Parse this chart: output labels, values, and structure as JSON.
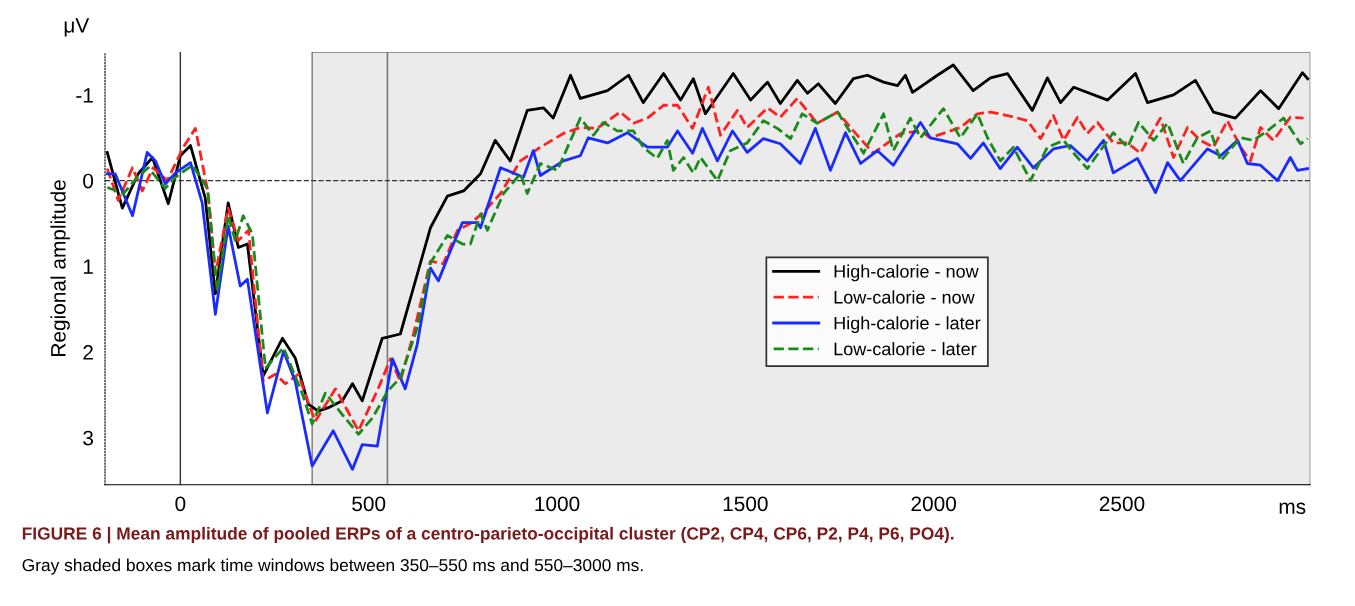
{
  "chart_data": {
    "type": "line",
    "title": "FIGURE 6 | Mean amplitude of pooled ERPs of a centro-parieto-occipital cluster (CP2, CP4, CP6, P2, P4, P6, PO4).",
    "ylabel": "Regional amplitude",
    "annotations": [
      "μV",
      "ms",
      "Gray shaded boxes mark time windows between 350–550 ms and 550–3000 ms."
    ],
    "xlim": [
      -200,
      3000
    ],
    "ylim": [
      3.55,
      -1.5
    ],
    "xticks": [
      0,
      500,
      1000,
      1500,
      2000,
      2500
    ],
    "yticks": [
      {
        "value": -1,
        "label": "-1"
      },
      0,
      1,
      2,
      3
    ],
    "grid": false,
    "legend": "center right",
    "marker": "none",
    "bands": [
      {
        "axis": "x",
        "from": 350,
        "to": 550,
        "color": "#ebebeb"
      },
      {
        "axis": "x",
        "from": 550,
        "to": 3000,
        "color": "#ebebeb"
      }
    ],
    "ref_lines": [
      {
        "axis": "y",
        "value": 0,
        "color": "#333333",
        "line_style": "dashed"
      },
      {
        "axis": "x",
        "value": 0,
        "color": "#333333",
        "line_style": "solid"
      }
    ],
    "series": [
      {
        "name": "High-calorie - now",
        "color": "#000000",
        "line_style": "solid",
        "x": [
          -194,
          -154,
          -112,
          -74,
          -32,
          0,
          27,
          66,
          93,
          127,
          154,
          178,
          220,
          271,
          305,
          340,
          366,
          393,
          430,
          457,
          483,
          536,
          584,
          619,
          664,
          709,
          752,
          797,
          836,
          876,
          921,
          964,
          990,
          1036,
          1062,
          1134,
          1190,
          1229,
          1283,
          1328,
          1362,
          1394,
          1468,
          1514,
          1559,
          1593,
          1638,
          1665,
          1694,
          1739,
          1787,
          1824,
          1867,
          1904,
          1925,
          1944,
          2010,
          2052,
          2105,
          2151,
          2196,
          2262,
          2302,
          2337,
          2372,
          2462,
          2536,
          2568,
          2637,
          2695,
          2743,
          2801,
          2868,
          2916,
          2979,
          2993
        ],
        "values": [
          -0.33,
          0.32,
          -0.08,
          -0.27,
          0.27,
          -0.29,
          -0.41,
          0.2,
          1.32,
          0.26,
          0.78,
          0.74,
          2.28,
          1.84,
          2.07,
          2.61,
          2.69,
          2.65,
          2.57,
          2.37,
          2.57,
          1.84,
          1.79,
          1.25,
          0.55,
          0.18,
          0.12,
          -0.08,
          -0.47,
          -0.23,
          -0.82,
          -0.85,
          -0.73,
          -1.23,
          -0.96,
          -1.05,
          -1.23,
          -0.91,
          -1.25,
          -0.94,
          -1.19,
          -0.78,
          -1.25,
          -0.94,
          -1.15,
          -0.9,
          -1.17,
          -1.02,
          -1.13,
          -0.9,
          -1.19,
          -1.23,
          -1.15,
          -1.11,
          -1.23,
          -1.03,
          -1.23,
          -1.35,
          -1.05,
          -1.2,
          -1.25,
          -0.82,
          -1.2,
          -0.91,
          -1.09,
          -0.94,
          -1.25,
          -0.91,
          -1.0,
          -1.17,
          -0.8,
          -0.73,
          -1.05,
          -0.84,
          -1.26,
          -1.19
        ]
      },
      {
        "name": "Low-calorie - now",
        "color": "#ff2020",
        "line_style": "dashed",
        "x": [
          -194,
          -165,
          -127,
          -101,
          -72,
          -35,
          8,
          40,
          74,
          93,
          127,
          154,
          181,
          220,
          252,
          279,
          313,
          358,
          412,
          473,
          526,
          558,
          584,
          619,
          664,
          698,
          736,
          770,
          805,
          850,
          903,
          956,
          1017,
          1062,
          1107,
          1168,
          1203,
          1240,
          1283,
          1320,
          1360,
          1402,
          1434,
          1479,
          1505,
          1559,
          1593,
          1638,
          1691,
          1745,
          1787,
          1840,
          1912,
          1965,
          1991,
          2071,
          2116,
          2151,
          2196,
          2249,
          2284,
          2318,
          2345,
          2382,
          2408,
          2435,
          2477,
          2515,
          2549,
          2602,
          2637,
          2674,
          2708,
          2743,
          2780,
          2815,
          2841,
          2868,
          2902,
          2947,
          2982
        ],
        "values": [
          -0.14,
          0.23,
          -0.15,
          0.12,
          -0.15,
          0,
          -0.39,
          -0.61,
          0.15,
          1.09,
          0.32,
          0.7,
          0.58,
          2.34,
          2.26,
          2.37,
          2.26,
          2.81,
          2.43,
          2.92,
          2.42,
          2.08,
          2.34,
          1.79,
          0.94,
          0.97,
          0.58,
          0.5,
          0.37,
          0.15,
          -0.23,
          -0.39,
          -0.55,
          -0.62,
          -0.61,
          -0.8,
          -0.67,
          -0.73,
          -0.88,
          -0.88,
          -0.61,
          -1.09,
          -0.53,
          -0.82,
          -0.62,
          -0.85,
          -0.74,
          -0.96,
          -0.67,
          -0.8,
          -0.58,
          -0.32,
          -0.55,
          -0.58,
          -0.5,
          -0.62,
          -0.78,
          -0.8,
          -0.76,
          -0.7,
          -0.49,
          -0.76,
          -0.47,
          -0.74,
          -0.55,
          -0.68,
          -0.44,
          -0.44,
          -0.32,
          -0.73,
          -0.27,
          -0.62,
          -0.47,
          -0.39,
          -0.7,
          -0.39,
          -0.23,
          -0.62,
          -0.47,
          -0.74,
          -0.73
        ]
      },
      {
        "name": "High-calorie - later",
        "color": "#1a2bff",
        "line_style": "solid",
        "x": [
          -194,
          -173,
          -127,
          -88,
          -66,
          -40,
          -13,
          27,
          58,
          93,
          127,
          159,
          178,
          231,
          274,
          305,
          350,
          406,
          457,
          483,
          523,
          563,
          597,
          629,
          664,
          685,
          717,
          749,
          789,
          797,
          850,
          884,
          911,
          937,
          956,
          1017,
          1062,
          1083,
          1134,
          1187,
          1240,
          1293,
          1320,
          1360,
          1386,
          1426,
          1466,
          1505,
          1548,
          1593,
          1646,
          1686,
          1726,
          1766,
          1806,
          1851,
          1893,
          1965,
          1991,
          2063,
          2098,
          2132,
          2177,
          2222,
          2265,
          2318,
          2363,
          2408,
          2451,
          2477,
          2541,
          2589,
          2621,
          2655,
          2727,
          2762,
          2807,
          2833,
          2868,
          2913,
          2947,
          2966,
          2993
        ],
        "values": [
          -0.08,
          -0.08,
          0.41,
          -0.33,
          -0.23,
          0.04,
          -0.09,
          -0.21,
          0.26,
          1.56,
          0.53,
          1.23,
          1.15,
          2.71,
          1.99,
          2.34,
          3.33,
          2.92,
          3.37,
          3.08,
          3.1,
          2.08,
          2.43,
          1.91,
          1.02,
          1.17,
          0.82,
          0.49,
          0.49,
          0.55,
          -0.15,
          -0.09,
          -0.04,
          -0.35,
          -0.06,
          -0.23,
          -0.29,
          -0.5,
          -0.44,
          -0.56,
          -0.39,
          -0.39,
          -0.58,
          -0.32,
          -0.61,
          -0.23,
          -0.58,
          -0.33,
          -0.49,
          -0.43,
          -0.2,
          -0.61,
          -0.12,
          -0.56,
          -0.2,
          -0.35,
          -0.18,
          -0.68,
          -0.5,
          -0.43,
          -0.26,
          -0.44,
          -0.14,
          -0.39,
          -0.15,
          -0.37,
          -0.41,
          -0.23,
          -0.47,
          -0.09,
          -0.26,
          0.14,
          -0.21,
          0.0,
          -0.37,
          -0.29,
          -0.47,
          -0.2,
          -0.18,
          0.0,
          -0.27,
          -0.12,
          -0.14
        ]
      },
      {
        "name": "Low-calorie - later",
        "color": "#1a8a1a",
        "line_style": "dashed",
        "x": [
          -194,
          -151,
          -114,
          -85,
          -40,
          -13,
          32,
          72,
          98,
          127,
          146,
          167,
          191,
          226,
          274,
          324,
          350,
          385,
          430,
          473,
          510,
          550,
          584,
          629,
          664,
          709,
          749,
          770,
          797,
          815,
          858,
          903,
          921,
          956,
          1001,
          1062,
          1097,
          1123,
          1160,
          1203,
          1229,
          1266,
          1293,
          1309,
          1336,
          1362,
          1381,
          1426,
          1460,
          1505,
          1548,
          1585,
          1620,
          1651,
          1691,
          1745,
          1814,
          1867,
          1893,
          1938,
          1965,
          2026,
          2071,
          2116,
          2143,
          2177,
          2212,
          2257,
          2302,
          2345,
          2372,
          2408,
          2477,
          2515,
          2544,
          2584,
          2621,
          2663,
          2700,
          2735,
          2762,
          2815,
          2849,
          2886,
          2929,
          2974,
          2993
        ],
        "values": [
          0.08,
          0.15,
          -0.04,
          -0.15,
          0.09,
          -0.04,
          -0.18,
          0.09,
          1.29,
          0.41,
          0.7,
          0.41,
          0.62,
          2.19,
          1.95,
          2.49,
          2.84,
          2.48,
          2.73,
          2.96,
          2.77,
          2.46,
          2.3,
          1.72,
          0.96,
          0.64,
          0.74,
          0.74,
          0.39,
          0.58,
          0.15,
          -0.08,
          0.15,
          -0.2,
          -0.12,
          -0.73,
          -0.53,
          -0.68,
          -0.58,
          -0.58,
          -0.39,
          -0.26,
          -0.47,
          -0.12,
          -0.27,
          -0.09,
          -0.27,
          0.0,
          -0.35,
          -0.44,
          -0.7,
          -0.61,
          -0.49,
          -0.78,
          -0.67,
          -0.8,
          -0.32,
          -0.78,
          -0.35,
          -0.73,
          -0.5,
          -0.84,
          -0.5,
          -0.78,
          -0.5,
          -0.23,
          -0.39,
          0.0,
          -0.39,
          -0.47,
          -0.32,
          -0.14,
          -0.56,
          -0.39,
          -0.68,
          -0.47,
          -0.67,
          -0.2,
          -0.5,
          -0.58,
          -0.23,
          -0.5,
          -0.47,
          -0.58,
          -0.73,
          -0.43,
          -0.49
        ]
      }
    ]
  }
}
